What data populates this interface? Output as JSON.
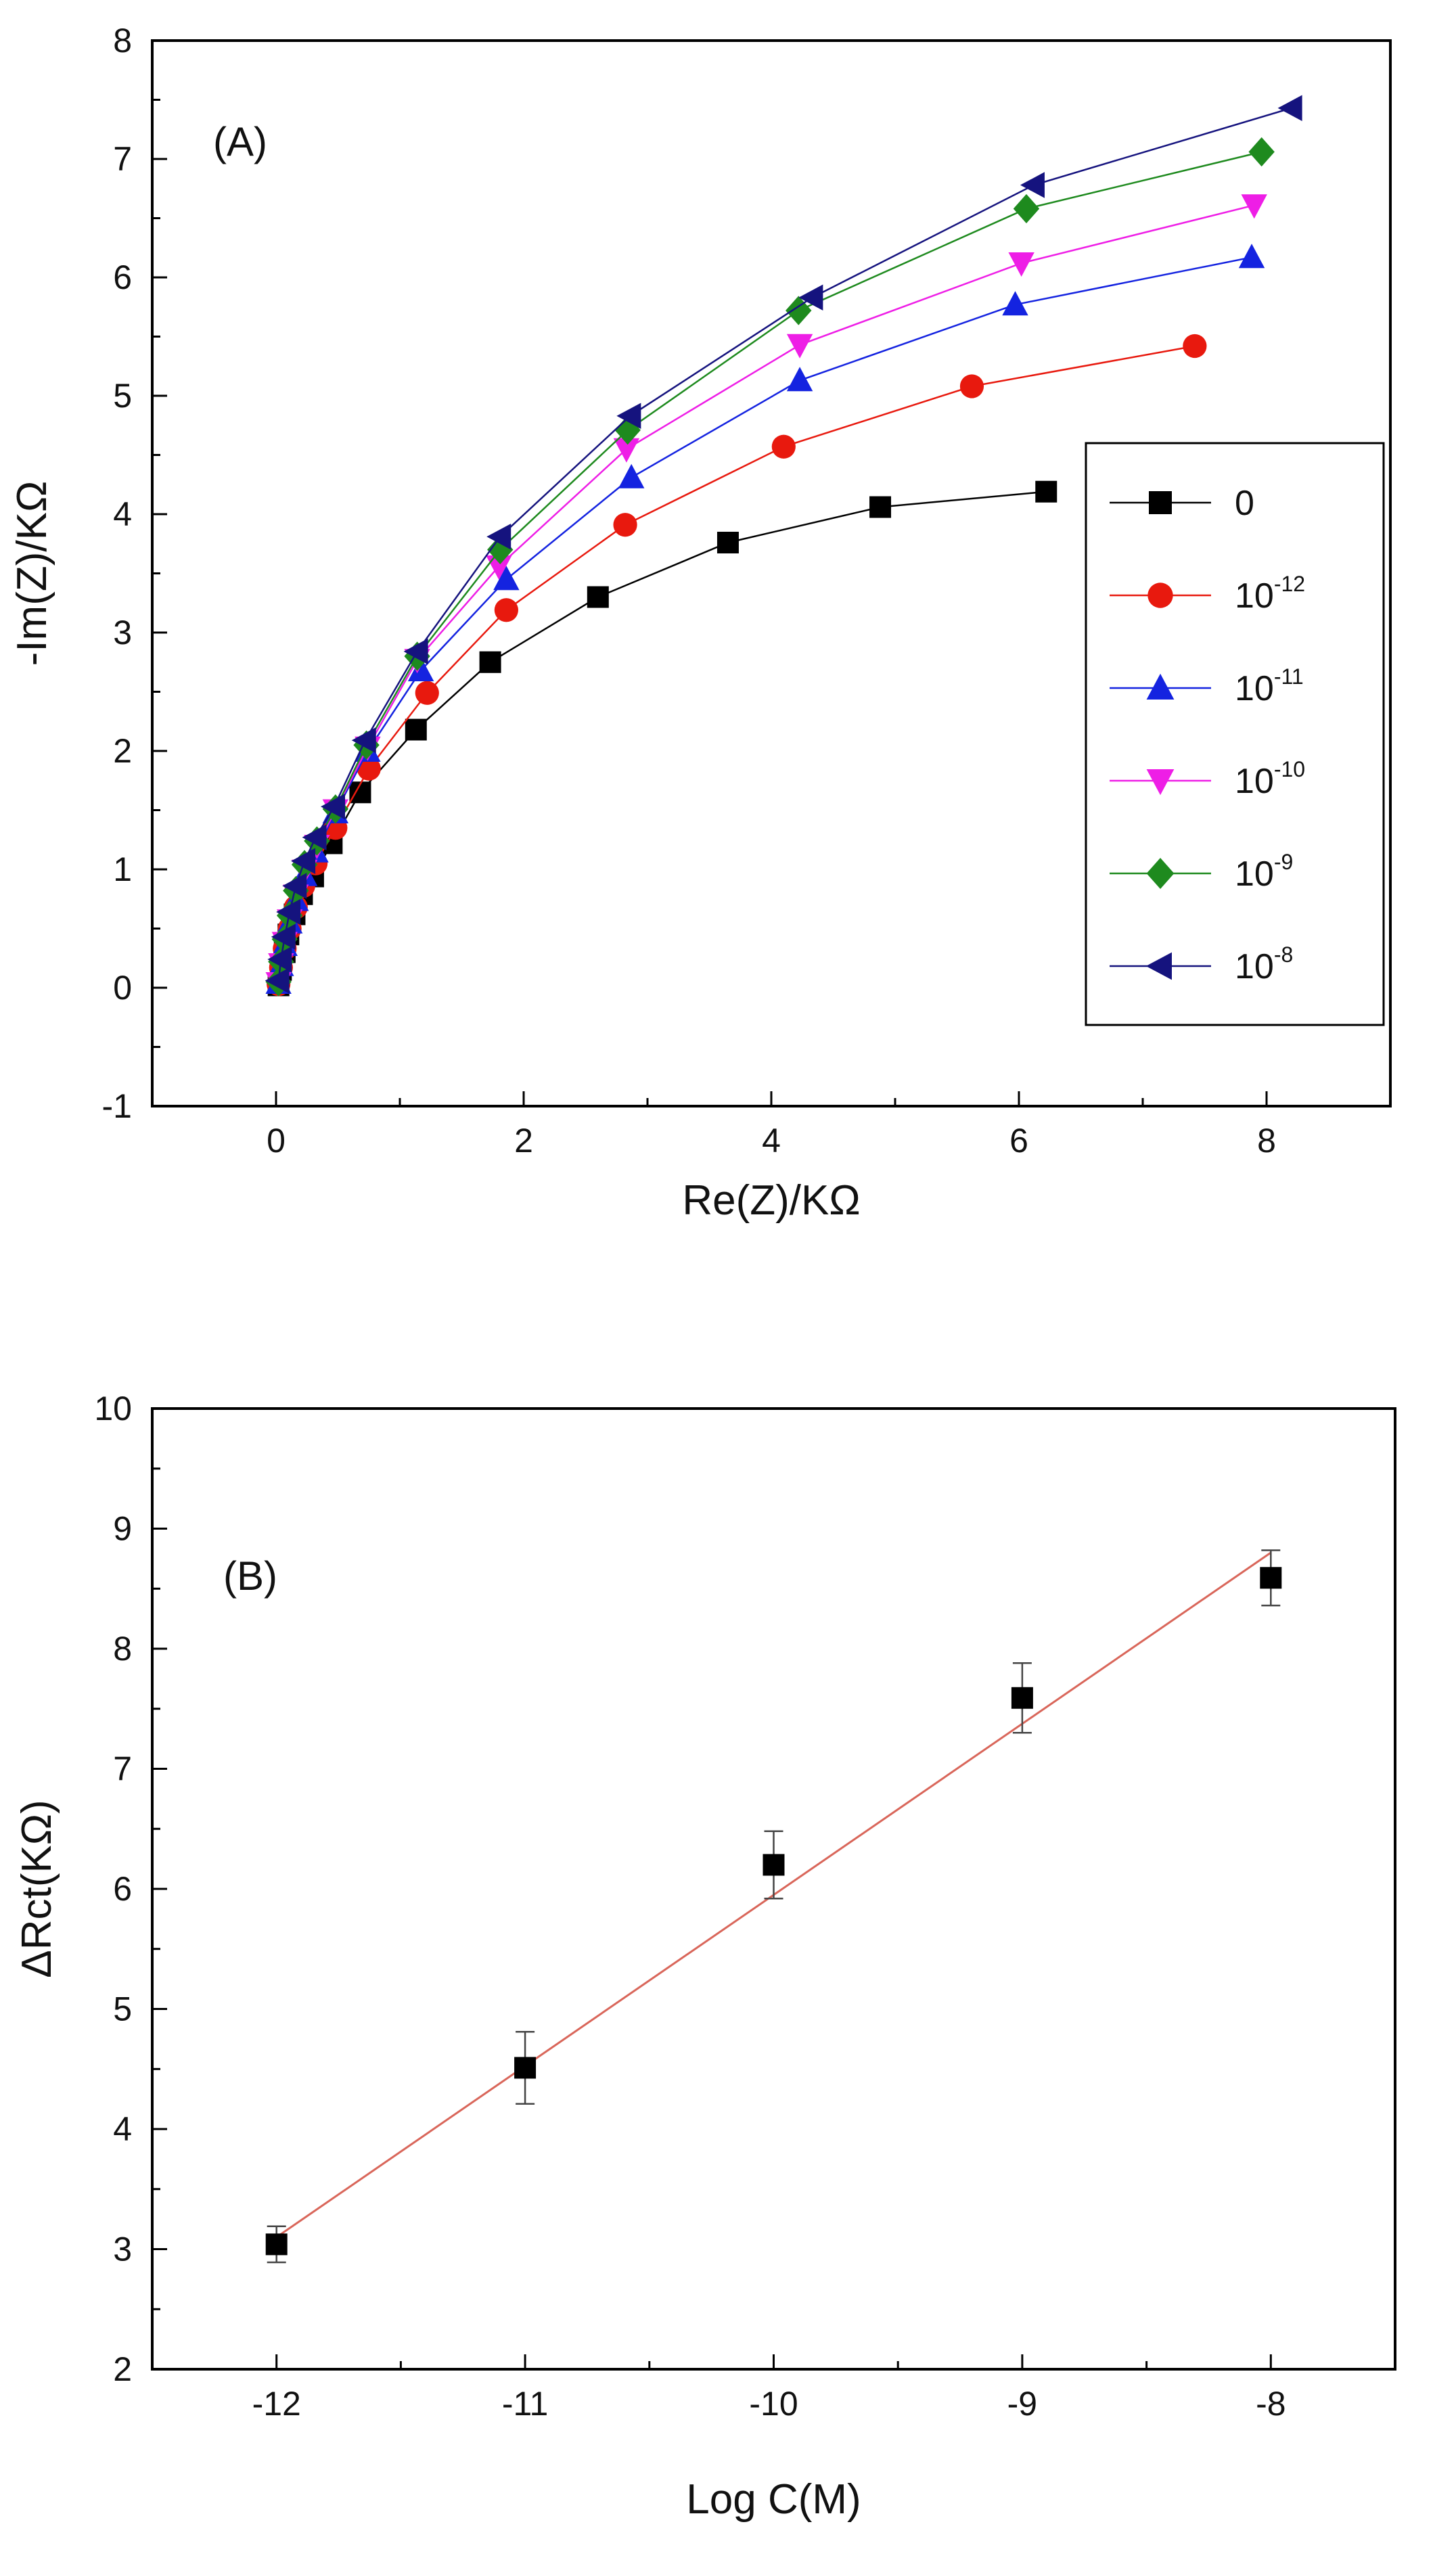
{
  "chart_data": [
    {
      "type": "line",
      "panel_label": "(A)",
      "xlabel": "Re(Z)/KΩ",
      "ylabel": "-Im(Z)/KΩ",
      "xlim": [
        -1,
        9
      ],
      "ylim": [
        -1,
        8
      ],
      "xticks": [
        0,
        2,
        4,
        6,
        8
      ],
      "yticks": [
        -1,
        0,
        1,
        2,
        3,
        4,
        5,
        6,
        7,
        8
      ],
      "legend_position": "right",
      "series": [
        {
          "name": "0",
          "label_base": "0",
          "label_exp": "",
          "color": "#000000",
          "marker": "square",
          "x": [
            0.02,
            0.04,
            0.07,
            0.1,
            0.15,
            0.21,
            0.3,
            0.45,
            0.68,
            1.13,
            1.73,
            2.6,
            3.65,
            4.88,
            6.22
          ],
          "y": [
            0.02,
            0.15,
            0.3,
            0.45,
            0.62,
            0.79,
            0.94,
            1.22,
            1.65,
            2.18,
            2.75,
            3.3,
            3.76,
            4.06,
            4.19
          ]
        },
        {
          "name": "10^-12",
          "label_base": "10",
          "label_exp": "-12",
          "color": "#e8190e",
          "marker": "circle",
          "x": [
            0.02,
            0.04,
            0.07,
            0.11,
            0.16,
            0.22,
            0.32,
            0.48,
            0.75,
            1.22,
            1.86,
            2.82,
            4.1,
            5.62,
            7.42
          ],
          "y": [
            0.03,
            0.17,
            0.33,
            0.5,
            0.68,
            0.86,
            1.05,
            1.35,
            1.85,
            2.49,
            3.19,
            3.91,
            4.57,
            5.08,
            5.42
          ]
        },
        {
          "name": "10^-11",
          "label_base": "10",
          "label_exp": "-11",
          "color": "#1423e0",
          "marker": "triangle-up",
          "x": [
            0.02,
            0.04,
            0.07,
            0.11,
            0.16,
            0.23,
            0.32,
            0.48,
            0.74,
            1.17,
            1.86,
            2.87,
            4.23,
            5.97,
            7.88
          ],
          "y": [
            0.04,
            0.19,
            0.36,
            0.55,
            0.74,
            0.95,
            1.15,
            1.48,
            2.0,
            2.68,
            3.45,
            4.31,
            5.13,
            5.77,
            6.17
          ]
        },
        {
          "name": "10^-10",
          "label_base": "10",
          "label_exp": "-10",
          "color": "#ee1ee6",
          "marker": "triangle-down",
          "x": [
            0.02,
            0.04,
            0.07,
            0.11,
            0.16,
            0.23,
            0.33,
            0.48,
            0.74,
            1.14,
            1.8,
            2.83,
            4.23,
            6.02,
            7.9
          ],
          "y": [
            0.04,
            0.2,
            0.38,
            0.57,
            0.78,
            0.99,
            1.2,
            1.5,
            2.03,
            2.77,
            3.56,
            4.55,
            5.43,
            6.12,
            6.61
          ]
        },
        {
          "name": "10^-9",
          "label_base": "10",
          "label_exp": "-9",
          "color": "#1e8a1e",
          "marker": "diamond",
          "x": [
            0.02,
            0.04,
            0.07,
            0.11,
            0.16,
            0.23,
            0.33,
            0.48,
            0.73,
            1.14,
            1.81,
            2.84,
            4.22,
            6.06,
            7.96
          ],
          "y": [
            0.05,
            0.22,
            0.41,
            0.61,
            0.82,
            1.04,
            1.24,
            1.51,
            2.05,
            2.8,
            3.7,
            4.71,
            5.72,
            6.58,
            7.06
          ]
        },
        {
          "name": "10^-8",
          "label_base": "10",
          "label_exp": "-8",
          "color": "#15137e",
          "marker": "triangle-left",
          "x": [
            0.02,
            0.04,
            0.07,
            0.11,
            0.16,
            0.23,
            0.32,
            0.47,
            0.72,
            1.14,
            1.81,
            2.86,
            4.33,
            6.12,
            8.2
          ],
          "y": [
            0.06,
            0.24,
            0.43,
            0.64,
            0.86,
            1.07,
            1.27,
            1.53,
            2.09,
            2.84,
            3.81,
            4.83,
            5.83,
            6.78,
            7.43
          ]
        }
      ]
    },
    {
      "type": "scatter",
      "panel_label": "(B)",
      "xlabel": "Log C(M)",
      "ylabel": "ΔRct(KΩ)",
      "xlim": [
        -12.5,
        -7.5
      ],
      "ylim": [
        2,
        10
      ],
      "xticks": [
        -12,
        -11,
        -10,
        -9,
        -8
      ],
      "yticks": [
        2,
        3,
        4,
        5,
        6,
        7,
        8,
        9,
        10
      ],
      "point_color": "#000000",
      "fit_color": "#d9665a",
      "x": [
        -12,
        -11,
        -10,
        -9,
        -8
      ],
      "y": [
        3.04,
        4.51,
        6.2,
        7.59,
        8.59
      ],
      "error": [
        0.15,
        0.3,
        0.28,
        0.29,
        0.23
      ],
      "fit_line": {
        "x": [
          -12,
          -8
        ],
        "y": [
          3.1,
          8.8
        ]
      }
    }
  ]
}
